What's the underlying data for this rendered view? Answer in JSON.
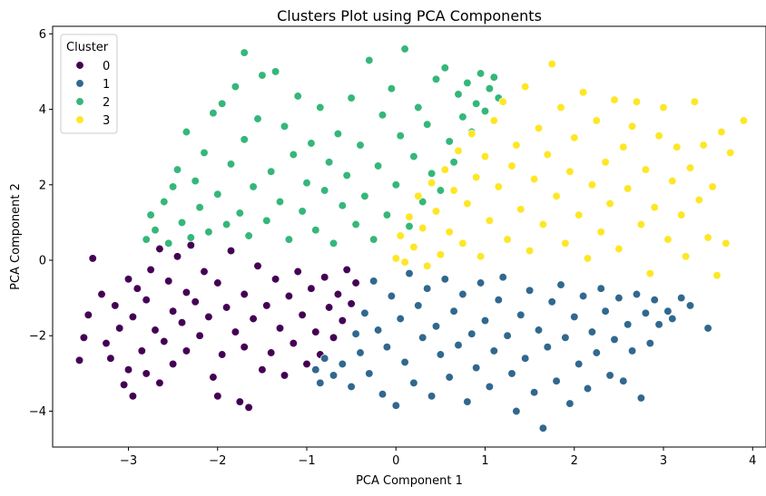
{
  "chart_data": {
    "type": "scatter",
    "title": "Clusters Plot using PCA Components",
    "xlabel": "PCA Component 1",
    "ylabel": "PCA Component 2",
    "xlim": [
      -3.85,
      4.15
    ],
    "ylim": [
      -4.95,
      6.2
    ],
    "xticks": [
      -3,
      -2,
      -1,
      0,
      1,
      2,
      3,
      4
    ],
    "yticks": [
      -4,
      -2,
      0,
      2,
      4,
      6
    ],
    "xtick_labels": [
      "−3",
      "−2",
      "−1",
      "0",
      "1",
      "2",
      "3",
      "4"
    ],
    "ytick_labels": [
      "−4",
      "−2",
      "0",
      "2",
      "4",
      "6"
    ],
    "grid": false,
    "legend": {
      "title": "Cluster",
      "placement": "top-left",
      "entries": [
        "0",
        "1",
        "2",
        "3"
      ]
    },
    "series": [
      {
        "name": "0",
        "color": "#440154",
        "points": [
          [
            -3.55,
            -2.65
          ],
          [
            -3.5,
            -2.05
          ],
          [
            -3.45,
            -1.45
          ],
          [
            -3.4,
            0.05
          ],
          [
            -3.3,
            -0.9
          ],
          [
            -3.25,
            -2.2
          ],
          [
            -3.2,
            -2.6
          ],
          [
            -3.15,
            -1.2
          ],
          [
            -3.1,
            -1.8
          ],
          [
            -3.05,
            -3.3
          ],
          [
            -3.0,
            -2.9
          ],
          [
            -3.0,
            -0.5
          ],
          [
            -2.95,
            -3.6
          ],
          [
            -2.95,
            -1.5
          ],
          [
            -2.9,
            -0.75
          ],
          [
            -2.85,
            -2.4
          ],
          [
            -2.8,
            -1.05
          ],
          [
            -2.8,
            -3.0
          ],
          [
            -2.75,
            -0.25
          ],
          [
            -2.7,
            -1.85
          ],
          [
            -2.65,
            -3.25
          ],
          [
            -2.65,
            0.3
          ],
          [
            -2.6,
            -2.15
          ],
          [
            -2.55,
            -0.55
          ],
          [
            -2.5,
            -1.35
          ],
          [
            -2.5,
            -2.75
          ],
          [
            -2.45,
            0.1
          ],
          [
            -2.4,
            -1.65
          ],
          [
            -2.35,
            -0.85
          ],
          [
            -2.35,
            -2.4
          ],
          [
            -2.3,
            0.4
          ],
          [
            -2.25,
            -1.1
          ],
          [
            -2.2,
            -2.0
          ],
          [
            -2.15,
            -0.3
          ],
          [
            -2.1,
            -1.5
          ],
          [
            -2.05,
            -3.1
          ],
          [
            -2.0,
            -3.6
          ],
          [
            -2.0,
            -0.6
          ],
          [
            -1.95,
            -2.5
          ],
          [
            -1.9,
            -1.25
          ],
          [
            -1.85,
            0.25
          ],
          [
            -1.8,
            -1.9
          ],
          [
            -1.75,
            -3.75
          ],
          [
            -1.7,
            -2.3
          ],
          [
            -1.7,
            -0.9
          ],
          [
            -1.65,
            -3.9
          ],
          [
            -1.6,
            -1.55
          ],
          [
            -1.55,
            -0.15
          ],
          [
            -1.5,
            -2.9
          ],
          [
            -1.45,
            -1.2
          ],
          [
            -1.4,
            -2.45
          ],
          [
            -1.35,
            -0.5
          ],
          [
            -1.3,
            -1.8
          ],
          [
            -1.25,
            -3.05
          ],
          [
            -1.2,
            -0.95
          ],
          [
            -1.15,
            -2.2
          ],
          [
            -1.1,
            -0.3
          ],
          [
            -1.05,
            -1.45
          ],
          [
            -1.0,
            -2.75
          ],
          [
            -0.95,
            -0.75
          ],
          [
            -0.9,
            -1.9
          ],
          [
            -0.85,
            -2.5
          ],
          [
            -0.8,
            -0.45
          ],
          [
            -0.75,
            -1.25
          ],
          [
            -0.7,
            -2.05
          ],
          [
            -0.65,
            -0.9
          ],
          [
            -0.6,
            -1.6
          ],
          [
            -0.55,
            -0.25
          ],
          [
            -0.5,
            -1.15
          ],
          [
            -0.45,
            -0.6
          ]
        ]
      },
      {
        "name": "1",
        "color": "#31688e",
        "points": [
          [
            -0.9,
            -2.9
          ],
          [
            -0.85,
            -3.25
          ],
          [
            -0.8,
            -2.6
          ],
          [
            -0.7,
            -3.05
          ],
          [
            -0.6,
            -2.75
          ],
          [
            -0.5,
            -3.35
          ],
          [
            -0.45,
            -1.95
          ],
          [
            -0.4,
            -2.45
          ],
          [
            -0.35,
            -1.4
          ],
          [
            -0.3,
            -3.0
          ],
          [
            -0.25,
            -0.55
          ],
          [
            -0.2,
            -1.85
          ],
          [
            -0.15,
            -3.55
          ],
          [
            -0.1,
            -2.3
          ],
          [
            -0.05,
            -0.95
          ],
          [
            0.0,
            -3.85
          ],
          [
            0.05,
            -1.55
          ],
          [
            0.1,
            -2.7
          ],
          [
            0.15,
            -0.35
          ],
          [
            0.2,
            -3.25
          ],
          [
            0.25,
            -1.2
          ],
          [
            0.3,
            -2.05
          ],
          [
            0.35,
            -0.75
          ],
          [
            0.4,
            -3.6
          ],
          [
            0.45,
            -1.75
          ],
          [
            0.5,
            -2.5
          ],
          [
            0.55,
            -0.5
          ],
          [
            0.6,
            -3.1
          ],
          [
            0.65,
            -1.35
          ],
          [
            0.7,
            -2.25
          ],
          [
            0.75,
            -0.9
          ],
          [
            0.8,
            -3.75
          ],
          [
            0.85,
            -1.95
          ],
          [
            0.9,
            -2.85
          ],
          [
            0.95,
            -0.6
          ],
          [
            1.0,
            -1.6
          ],
          [
            1.05,
            -3.35
          ],
          [
            1.1,
            -2.4
          ],
          [
            1.15,
            -1.05
          ],
          [
            1.2,
            -0.45
          ],
          [
            1.25,
            -2.0
          ],
          [
            1.3,
            -3.0
          ],
          [
            1.35,
            -4.0
          ],
          [
            1.4,
            -1.45
          ],
          [
            1.45,
            -2.6
          ],
          [
            1.5,
            -0.8
          ],
          [
            1.55,
            -3.5
          ],
          [
            1.6,
            -1.85
          ],
          [
            1.65,
            -4.45
          ],
          [
            1.7,
            -2.3
          ],
          [
            1.75,
            -1.1
          ],
          [
            1.8,
            -3.2
          ],
          [
            1.85,
            -0.65
          ],
          [
            1.9,
            -2.05
          ],
          [
            1.95,
            -3.8
          ],
          [
            2.0,
            -1.5
          ],
          [
            2.05,
            -2.75
          ],
          [
            2.1,
            -0.95
          ],
          [
            2.15,
            -3.4
          ],
          [
            2.2,
            -1.9
          ],
          [
            2.25,
            -2.45
          ],
          [
            2.3,
            -0.75
          ],
          [
            2.35,
            -1.35
          ],
          [
            2.4,
            -3.05
          ],
          [
            2.45,
            -2.1
          ],
          [
            2.5,
            -1.0
          ],
          [
            2.55,
            -3.2
          ],
          [
            2.6,
            -1.7
          ],
          [
            2.65,
            -2.4
          ],
          [
            2.7,
            -0.9
          ],
          [
            2.75,
            -3.65
          ],
          [
            2.8,
            -1.4
          ],
          [
            2.85,
            -2.2
          ],
          [
            2.9,
            -1.05
          ],
          [
            2.95,
            -1.7
          ],
          [
            3.05,
            -1.35
          ],
          [
            3.1,
            -1.55
          ],
          [
            3.2,
            -1.0
          ],
          [
            3.3,
            -1.2
          ],
          [
            3.5,
            -1.8
          ]
        ]
      },
      {
        "name": "2",
        "color": "#35b779",
        "points": [
          [
            -2.8,
            0.55
          ],
          [
            -2.75,
            1.2
          ],
          [
            -2.7,
            0.8
          ],
          [
            -2.6,
            1.55
          ],
          [
            -2.55,
            0.45
          ],
          [
            -2.5,
            1.95
          ],
          [
            -2.45,
            2.4
          ],
          [
            -2.4,
            1.0
          ],
          [
            -2.35,
            3.4
          ],
          [
            -2.3,
            0.6
          ],
          [
            -2.25,
            2.1
          ],
          [
            -2.2,
            1.4
          ],
          [
            -2.15,
            2.85
          ],
          [
            -2.1,
            0.75
          ],
          [
            -2.05,
            3.9
          ],
          [
            -2.0,
            1.75
          ],
          [
            -1.95,
            4.15
          ],
          [
            -1.9,
            0.95
          ],
          [
            -1.85,
            2.55
          ],
          [
            -1.8,
            4.6
          ],
          [
            -1.75,
            1.25
          ],
          [
            -1.7,
            5.5
          ],
          [
            -1.7,
            3.2
          ],
          [
            -1.65,
            0.65
          ],
          [
            -1.6,
            1.95
          ],
          [
            -1.55,
            3.75
          ],
          [
            -1.5,
            4.9
          ],
          [
            -1.45,
            1.05
          ],
          [
            -1.4,
            2.35
          ],
          [
            -1.35,
            5.0
          ],
          [
            -1.3,
            1.55
          ],
          [
            -1.25,
            3.55
          ],
          [
            -1.2,
            0.55
          ],
          [
            -1.15,
            2.8
          ],
          [
            -1.1,
            4.35
          ],
          [
            -1.05,
            1.3
          ],
          [
            -1.0,
            2.05
          ],
          [
            -0.95,
            3.1
          ],
          [
            -0.9,
            0.8
          ],
          [
            -0.85,
            4.05
          ],
          [
            -0.8,
            1.85
          ],
          [
            -0.75,
            2.6
          ],
          [
            -0.7,
            0.45
          ],
          [
            -0.65,
            3.35
          ],
          [
            -0.6,
            1.45
          ],
          [
            -0.55,
            2.25
          ],
          [
            -0.5,
            4.3
          ],
          [
            -0.45,
            0.95
          ],
          [
            -0.4,
            3.05
          ],
          [
            -0.35,
            1.7
          ],
          [
            -0.3,
            5.3
          ],
          [
            -0.25,
            0.55
          ],
          [
            -0.2,
            2.5
          ],
          [
            -0.15,
            3.85
          ],
          [
            -0.1,
            1.2
          ],
          [
            -0.05,
            4.55
          ],
          [
            0.0,
            2.0
          ],
          [
            0.05,
            3.3
          ],
          [
            0.1,
            5.6
          ],
          [
            0.15,
            0.9
          ],
          [
            0.2,
            2.75
          ],
          [
            0.25,
            4.05
          ],
          [
            0.3,
            1.55
          ],
          [
            0.35,
            3.6
          ],
          [
            0.4,
            2.3
          ],
          [
            0.45,
            4.8
          ],
          [
            0.5,
            1.85
          ],
          [
            0.55,
            5.1
          ],
          [
            0.6,
            3.15
          ],
          [
            0.65,
            2.6
          ],
          [
            0.7,
            4.4
          ],
          [
            0.75,
            3.8
          ],
          [
            0.8,
            4.7
          ],
          [
            0.85,
            3.4
          ],
          [
            0.9,
            4.15
          ],
          [
            0.95,
            4.95
          ],
          [
            1.0,
            3.95
          ],
          [
            1.05,
            4.55
          ],
          [
            1.1,
            4.85
          ],
          [
            1.15,
            4.3
          ]
        ]
      },
      {
        "name": "3",
        "color": "#fde725",
        "points": [
          [
            0.0,
            0.05
          ],
          [
            0.05,
            0.65
          ],
          [
            0.1,
            -0.05
          ],
          [
            0.15,
            1.15
          ],
          [
            0.2,
            0.35
          ],
          [
            0.25,
            1.7
          ],
          [
            0.3,
            0.85
          ],
          [
            0.35,
            -0.15
          ],
          [
            0.4,
            2.05
          ],
          [
            0.45,
            1.3
          ],
          [
            0.5,
            0.15
          ],
          [
            0.55,
            2.4
          ],
          [
            0.6,
            0.75
          ],
          [
            0.65,
            1.85
          ],
          [
            0.7,
            2.9
          ],
          [
            0.75,
            0.45
          ],
          [
            0.8,
            1.5
          ],
          [
            0.85,
            3.35
          ],
          [
            0.9,
            2.2
          ],
          [
            0.95,
            0.1
          ],
          [
            1.0,
            2.75
          ],
          [
            1.05,
            1.05
          ],
          [
            1.1,
            3.7
          ],
          [
            1.15,
            1.95
          ],
          [
            1.2,
            4.2
          ],
          [
            1.25,
            0.55
          ],
          [
            1.3,
            2.5
          ],
          [
            1.35,
            3.05
          ],
          [
            1.4,
            1.35
          ],
          [
            1.45,
            4.6
          ],
          [
            1.5,
            0.25
          ],
          [
            1.55,
            2.15
          ],
          [
            1.6,
            3.5
          ],
          [
            1.65,
            0.95
          ],
          [
            1.7,
            2.8
          ],
          [
            1.75,
            5.2
          ],
          [
            1.8,
            1.7
          ],
          [
            1.85,
            4.05
          ],
          [
            1.9,
            0.45
          ],
          [
            1.95,
            2.35
          ],
          [
            2.0,
            3.25
          ],
          [
            2.05,
            1.2
          ],
          [
            2.1,
            4.45
          ],
          [
            2.15,
            0.05
          ],
          [
            2.2,
            2.0
          ],
          [
            2.25,
            3.7
          ],
          [
            2.3,
            0.75
          ],
          [
            2.35,
            2.6
          ],
          [
            2.4,
            1.5
          ],
          [
            2.45,
            4.25
          ],
          [
            2.5,
            0.3
          ],
          [
            2.55,
            3.0
          ],
          [
            2.6,
            1.9
          ],
          [
            2.65,
            3.55
          ],
          [
            2.7,
            4.2
          ],
          [
            2.75,
            0.95
          ],
          [
            2.8,
            2.4
          ],
          [
            2.85,
            -0.35
          ],
          [
            2.9,
            1.4
          ],
          [
            2.95,
            3.3
          ],
          [
            3.0,
            4.05
          ],
          [
            3.05,
            0.55
          ],
          [
            3.1,
            2.1
          ],
          [
            3.15,
            3.0
          ],
          [
            3.2,
            1.2
          ],
          [
            3.25,
            0.1
          ],
          [
            3.3,
            2.45
          ],
          [
            3.35,
            4.2
          ],
          [
            3.4,
            1.6
          ],
          [
            3.45,
            3.05
          ],
          [
            3.5,
            0.6
          ],
          [
            3.55,
            1.95
          ],
          [
            3.6,
            -0.4
          ],
          [
            3.65,
            3.4
          ],
          [
            3.7,
            0.45
          ],
          [
            3.75,
            2.85
          ],
          [
            3.9,
            3.7
          ]
        ]
      }
    ]
  }
}
